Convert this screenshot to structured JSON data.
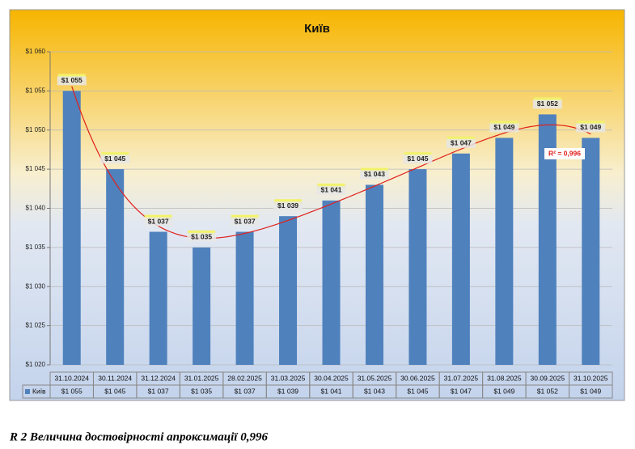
{
  "chart_data": {
    "type": "bar",
    "title": "Київ",
    "categories": [
      "31.10.2024",
      "30.11.2024",
      "31.12.2024",
      "31.01.2025",
      "28.02.2025",
      "31.03.2025",
      "30.04.2025",
      "31.05.2025",
      "30.06.2025",
      "31.07.2025",
      "31.08.2025",
      "30.09.2025",
      "31.10.2025"
    ],
    "series": [
      {
        "name": "Київ",
        "color": "#4f81bd",
        "values": [
          1055,
          1045,
          1037,
          1035,
          1037,
          1039,
          1041,
          1043,
          1045,
          1047,
          1049,
          1052,
          1049
        ],
        "value_labels": [
          "$1 055",
          "$1 045",
          "$1 037",
          "$1 035",
          "$1 037",
          "$1 039",
          "$1 041",
          "$1 043",
          "$1 045",
          "$1 047",
          "$1 049",
          "$1 052",
          "$1 049"
        ]
      }
    ],
    "ylim": [
      1020,
      1060
    ],
    "yticks": [
      {
        "value": 1020,
        "label": "$1 020"
      },
      {
        "value": 1025,
        "label": "$1 025"
      },
      {
        "value": 1030,
        "label": "$1 030"
      },
      {
        "value": 1035,
        "label": "$1 035"
      },
      {
        "value": 1040,
        "label": "$1 040"
      },
      {
        "value": 1045,
        "label": "$1 045"
      },
      {
        "value": 1050,
        "label": "$1 050"
      },
      {
        "value": 1055,
        "label": "$1 055"
      },
      {
        "value": 1060,
        "label": "$1 060"
      }
    ],
    "grid": true,
    "trendline": {
      "type": "polynomial",
      "color": "#e0201c",
      "label": "R² = 0,996"
    }
  },
  "caption": "R 2 Величина достовірності апроксимації 0,996"
}
